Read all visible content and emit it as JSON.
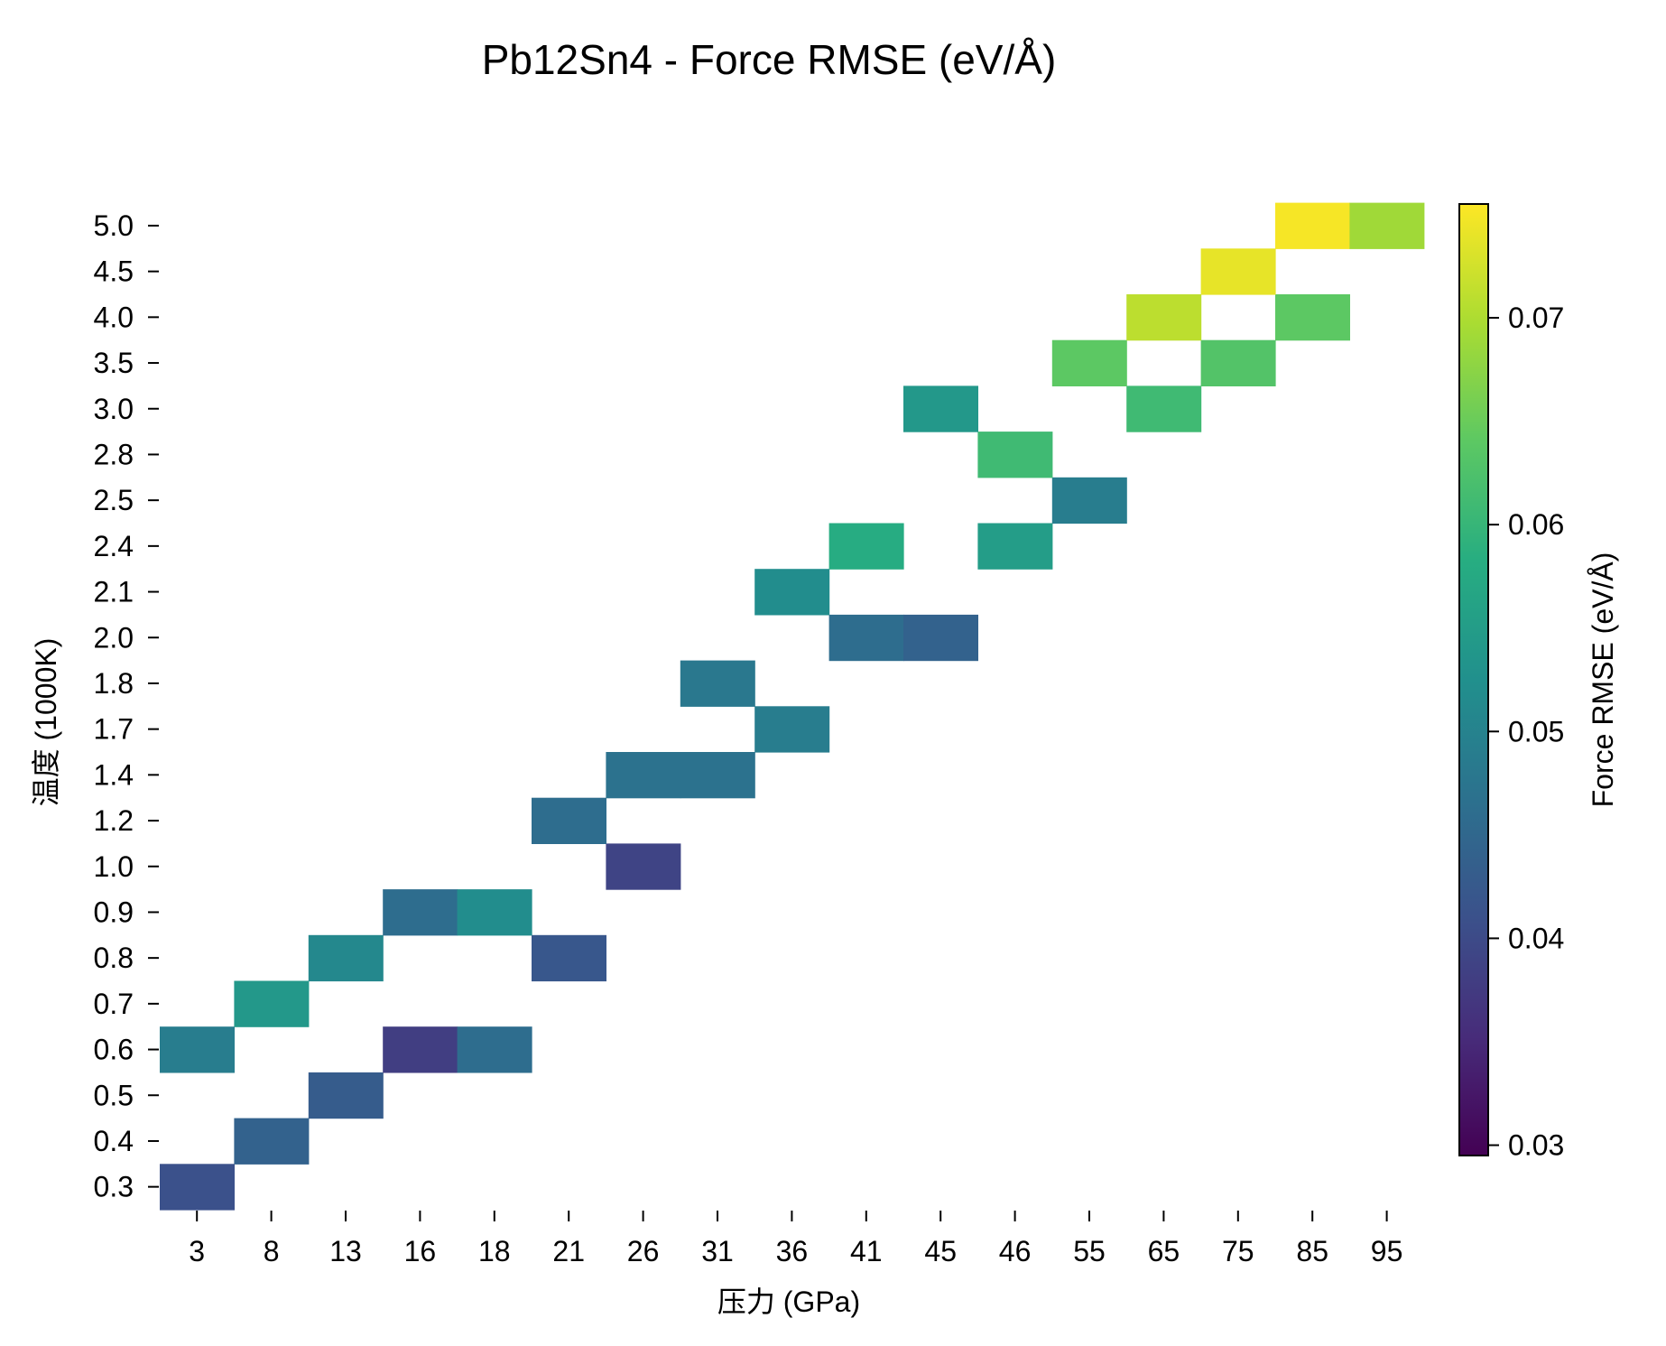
{
  "chart_data": {
    "type": "heatmap",
    "title": "Pb12Sn4 - Force RMSE (eV/Å)",
    "xlabel": "压力 (GPa)",
    "ylabel": "温度 (1000K)",
    "x_categories": [
      "3",
      "8",
      "13",
      "16",
      "18",
      "21",
      "26",
      "31",
      "36",
      "41",
      "45",
      "46",
      "55",
      "65",
      "75",
      "85",
      "95"
    ],
    "y_categories": [
      "0.3",
      "0.4",
      "0.5",
      "0.6",
      "0.7",
      "0.8",
      "0.9",
      "1.0",
      "1.2",
      "1.4",
      "1.7",
      "1.8",
      "2.0",
      "2.1",
      "2.4",
      "2.5",
      "2.8",
      "3.0",
      "3.5",
      "4.0",
      "4.5",
      "5.0"
    ],
    "cells": [
      {
        "x": "3",
        "y": "0.3",
        "value": 0.041
      },
      {
        "x": "8",
        "y": "0.4",
        "value": 0.044
      },
      {
        "x": "13",
        "y": "0.5",
        "value": 0.043
      },
      {
        "x": "3",
        "y": "0.6",
        "value": 0.049
      },
      {
        "x": "16",
        "y": "0.6",
        "value": 0.038
      },
      {
        "x": "18",
        "y": "0.6",
        "value": 0.046
      },
      {
        "x": "8",
        "y": "0.7",
        "value": 0.054
      },
      {
        "x": "13",
        "y": "0.8",
        "value": 0.051
      },
      {
        "x": "21",
        "y": "0.8",
        "value": 0.042
      },
      {
        "x": "16",
        "y": "0.9",
        "value": 0.046
      },
      {
        "x": "18",
        "y": "0.9",
        "value": 0.052
      },
      {
        "x": "26",
        "y": "1.0",
        "value": 0.039
      },
      {
        "x": "21",
        "y": "1.2",
        "value": 0.046
      },
      {
        "x": "26",
        "y": "1.4",
        "value": 0.047
      },
      {
        "x": "31",
        "y": "1.4",
        "value": 0.047
      },
      {
        "x": "36",
        "y": "1.7",
        "value": 0.049
      },
      {
        "x": "31",
        "y": "1.8",
        "value": 0.048
      },
      {
        "x": "41",
        "y": "2.0",
        "value": 0.046
      },
      {
        "x": "45",
        "y": "2.0",
        "value": 0.044
      },
      {
        "x": "36",
        "y": "2.1",
        "value": 0.052
      },
      {
        "x": "41",
        "y": "2.4",
        "value": 0.058
      },
      {
        "x": "46",
        "y": "2.4",
        "value": 0.055
      },
      {
        "x": "55",
        "y": "2.5",
        "value": 0.049
      },
      {
        "x": "46",
        "y": "2.8",
        "value": 0.061
      },
      {
        "x": "45",
        "y": "3.0",
        "value": 0.054
      },
      {
        "x": "65",
        "y": "3.0",
        "value": 0.061
      },
      {
        "x": "55",
        "y": "3.5",
        "value": 0.064
      },
      {
        "x": "75",
        "y": "3.5",
        "value": 0.063
      },
      {
        "x": "65",
        "y": "4.0",
        "value": 0.071
      },
      {
        "x": "85",
        "y": "4.0",
        "value": 0.064
      },
      {
        "x": "75",
        "y": "4.5",
        "value": 0.074
      },
      {
        "x": "85",
        "y": "5.0",
        "value": 0.075
      },
      {
        "x": "95",
        "y": "5.0",
        "value": 0.069
      }
    ],
    "colormap": "viridis",
    "vmin": 0.0295,
    "vmax": 0.0755,
    "colorbar": {
      "label": "Force RMSE (eV/Å)",
      "ticks": [
        0.03,
        0.04,
        0.05,
        0.06,
        0.07
      ],
      "tick_labels": [
        "0.03",
        "0.04",
        "0.05",
        "0.06",
        "0.07"
      ]
    },
    "grid": false,
    "legend": "none"
  }
}
